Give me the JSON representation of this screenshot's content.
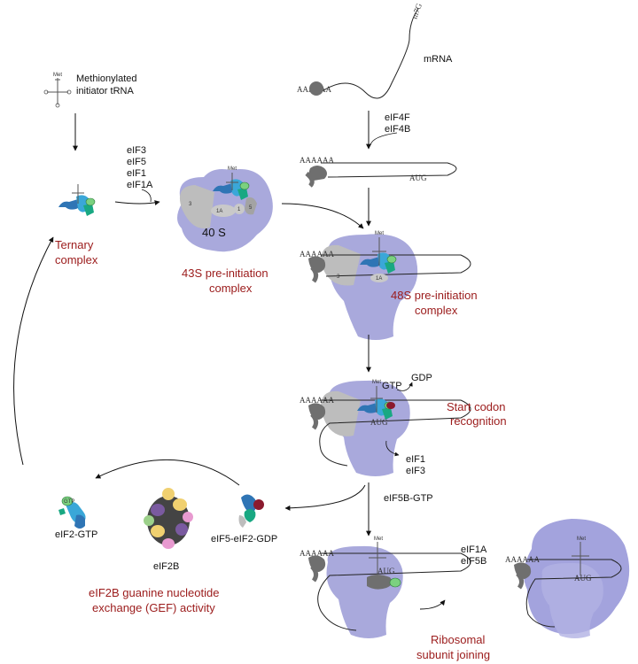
{
  "labels": {
    "met_trna": [
      "Methionylated",
      "initiator tRNA"
    ],
    "met": "Met",
    "factors_43s": [
      "eIF3",
      "eIF5",
      "eIF1",
      "eIF1A"
    ],
    "ternary": [
      "Ternary",
      "complex"
    ],
    "s40": "40 S",
    "pic43": [
      "43S pre-initiation",
      "complex"
    ],
    "mrna": "mRNA",
    "m7g": "m7G",
    "polyA": "AAAAAA",
    "eif4": [
      "eIF4F",
      "eIF4B"
    ],
    "aug": "AUG",
    "pic48": [
      "48S pre-initiation",
      "complex"
    ],
    "gtp": "GTP",
    "gdp": "GDP",
    "start_codon": [
      "Start codon",
      "recognition"
    ],
    "released": [
      "eIF1",
      "eIF3"
    ],
    "eif5b_gtp": "eIF5B-GTP",
    "eif2_gtp": "eIF2-GTP",
    "eif2b": "eIF2B",
    "eif5_eif2_gdp": "eIF5-eIF2-GDP",
    "gef": [
      "eIF2B guanine nucleotide",
      "exchange (GEF) activity"
    ],
    "join_factors": [
      "eIF1A",
      "eIF5B"
    ],
    "joining": [
      "Ribosomal",
      "subunit joining"
    ],
    "sub_3": "3",
    "sub_1a": "1A",
    "sub_1": "1",
    "sub_5": "5",
    "sub_gtp_small": "GTP"
  },
  "colors": {
    "ribosome40s": "#a9a9dc",
    "ribosome60s": "#a3a3dd",
    "eif3_gray": "#bdbdbd",
    "eif4_dark": "#6f6f6f",
    "eif2_blue": "#2f75b5",
    "eif2_light": "#3aa7d8",
    "eif2_green": "#19a882",
    "gtp_green": "#7bd17f",
    "gdp_red": "#8b1a2e",
    "label_red": "#9b1b1b"
  }
}
